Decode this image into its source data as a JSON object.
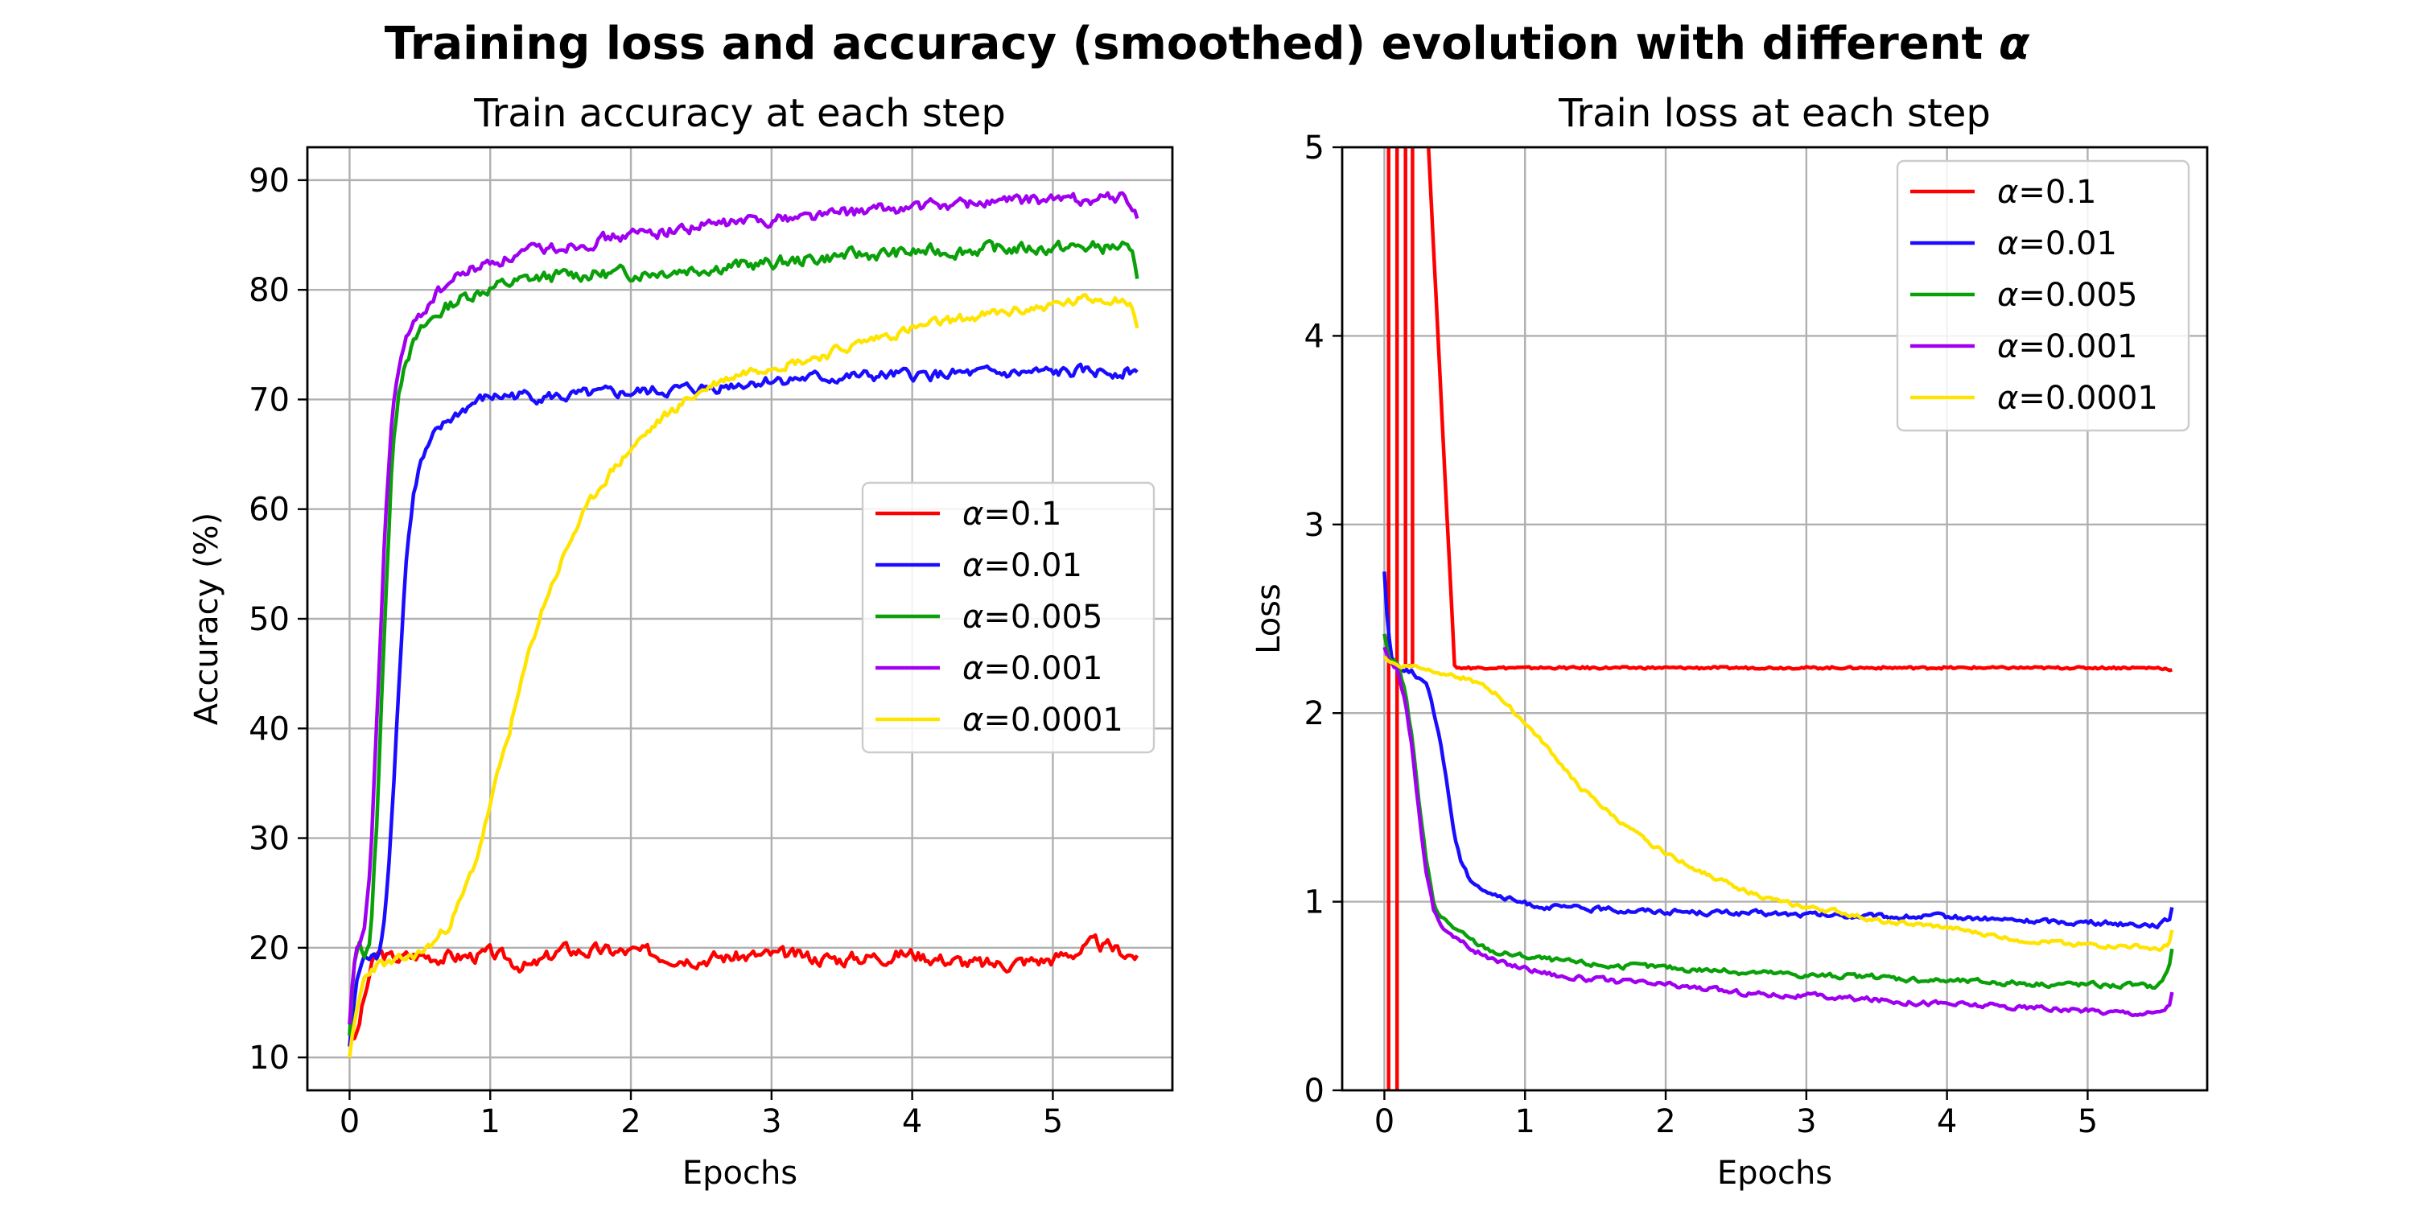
{
  "figure": {
    "title_prefix": "Training loss and accuracy (smoothed) evolution with different ",
    "title_symbol": "α"
  },
  "chart_data": [
    {
      "type": "line",
      "title": "Train accuracy at each step",
      "xlabel": "Epochs",
      "ylabel": "Accuracy (%)",
      "xlim": [
        -0.3,
        5.85
      ],
      "ylim": [
        7,
        93
      ],
      "xticks": [
        0,
        1,
        2,
        3,
        4,
        5
      ],
      "yticks": [
        10,
        20,
        30,
        40,
        50,
        60,
        70,
        80,
        90
      ],
      "grid": true,
      "legend_position": "center-right",
      "series": [
        {
          "name": "α=0.1",
          "color": "#ff0000",
          "noise": 0.55,
          "x": [
            0,
            0.05,
            0.1,
            0.15,
            0.2,
            0.3,
            0.5,
            0.8,
            1.0,
            1.3,
            1.5,
            2.0,
            2.5,
            3.0,
            3.5,
            4.0,
            4.5,
            5.0,
            5.3,
            5.6
          ],
          "y": [
            11,
            12,
            15,
            18,
            19.5,
            19,
            19.3,
            19.2,
            19.4,
            18.2,
            19.8,
            19.6,
            19.1,
            19.3,
            19.0,
            19.5,
            18.4,
            19.0,
            20.3,
            19.3
          ]
        },
        {
          "name": "α=0.01",
          "color": "#1a0dff",
          "noise": 0.45,
          "x": [
            0,
            0.05,
            0.1,
            0.15,
            0.2,
            0.25,
            0.3,
            0.35,
            0.4,
            0.45,
            0.5,
            0.6,
            0.7,
            0.8,
            0.9,
            1.0,
            1.2,
            1.5,
            2.0,
            2.5,
            3.0,
            3.5,
            4.0,
            4.5,
            5.0,
            5.5,
            5.6
          ],
          "y": [
            11,
            17,
            19,
            19,
            19,
            23,
            32,
            44,
            55,
            61,
            64,
            66.5,
            68,
            69,
            69.8,
            70.2,
            70.4,
            70.2,
            70.6,
            71.0,
            71.8,
            72.0,
            72.2,
            72.3,
            72.4,
            72.6,
            72.5
          ]
        },
        {
          "name": "α=0.005",
          "color": "#0aa00a",
          "noise": 0.5,
          "x": [
            0,
            0.03,
            0.06,
            0.1,
            0.15,
            0.2,
            0.25,
            0.3,
            0.35,
            0.4,
            0.45,
            0.5,
            0.6,
            0.7,
            0.8,
            1.0,
            1.3,
            1.6,
            2.0,
            2.5,
            3.0,
            3.5,
            4.0,
            4.5,
            5.0,
            5.5,
            5.58,
            5.6
          ],
          "y": [
            12,
            18,
            20.5,
            19.5,
            21,
            33,
            50,
            64,
            71,
            74,
            75,
            76,
            77.5,
            78.5,
            79.3,
            80.2,
            81,
            81.4,
            81.5,
            82,
            82.4,
            83.1,
            83.4,
            83.7,
            83.8,
            83.9,
            82.5,
            81
          ]
        },
        {
          "name": "α=0.001",
          "color": "#a000f0",
          "noise": 0.45,
          "x": [
            0,
            0.03,
            0.06,
            0.1,
            0.15,
            0.2,
            0.25,
            0.3,
            0.35,
            0.4,
            0.5,
            0.6,
            0.7,
            0.8,
            1.0,
            1.3,
            1.6,
            2.0,
            2.5,
            3.0,
            3.5,
            4.0,
            4.5,
            5.0,
            5.5,
            5.58,
            5.6
          ],
          "y": [
            13,
            18,
            20,
            21,
            28,
            42,
            58,
            68,
            73,
            75.5,
            77.5,
            79.5,
            80.5,
            81.5,
            82.5,
            83.5,
            84.2,
            85,
            85.8,
            86.5,
            87.0,
            87.5,
            88.0,
            88.2,
            88.4,
            87.5,
            86.5
          ]
        },
        {
          "name": "α=0.0001",
          "color": "#ffe400",
          "noise": 0.4,
          "x": [
            0,
            0.05,
            0.1,
            0.15,
            0.2,
            0.3,
            0.4,
            0.5,
            0.6,
            0.7,
            0.8,
            0.9,
            1.0,
            1.1,
            1.2,
            1.3,
            1.4,
            1.5,
            1.6,
            1.8,
            2.0,
            2.2,
            2.4,
            2.6,
            2.8,
            3.0,
            3.2,
            3.4,
            3.6,
            3.8,
            4.0,
            4.2,
            4.5,
            4.8,
            5.0,
            5.3,
            5.5,
            5.58,
            5.6
          ],
          "y": [
            10,
            14,
            17,
            18,
            18.5,
            18.5,
            19,
            19.5,
            20.5,
            22,
            24.5,
            28,
            33,
            38,
            43,
            48,
            52,
            55,
            58,
            62.5,
            65.5,
            68,
            70,
            71.5,
            72.5,
            73.2,
            73.5,
            74.2,
            75,
            75.8,
            76.4,
            77,
            77.6,
            78.2,
            78.6,
            79.2,
            79.3,
            78,
            76.5
          ]
        }
      ]
    },
    {
      "type": "line",
      "title": "Train loss at each step",
      "xlabel": "Epochs",
      "ylabel": "Loss",
      "xlim": [
        -0.3,
        5.85
      ],
      "ylim": [
        0,
        5
      ],
      "xticks": [
        0,
        1,
        2,
        3,
        4,
        5
      ],
      "yticks": [
        0,
        1,
        2,
        3,
        4,
        5
      ],
      "grid": true,
      "legend_position": "top-right",
      "series": [
        {
          "name": "α=0.1",
          "color": "#ff0000",
          "noise": 0.006,
          "x": [
            0,
            0.03,
            0.03,
            0.09,
            0.09,
            0.15,
            0.15,
            0.2,
            0.2,
            0.3,
            0.5,
            1.0,
            1.5,
            2.0,
            2.5,
            3.0,
            3.5,
            4.0,
            4.5,
            5.0,
            5.5,
            5.6
          ],
          "y": [
            5.2,
            5.2,
            -0.2,
            -0.2,
            5.2,
            5.2,
            2.25,
            2.25,
            5.2,
            5.2,
            2.24,
            2.24,
            2.24,
            2.24,
            2.24,
            2.24,
            2.24,
            2.24,
            2.24,
            2.24,
            2.24,
            2.23
          ]
        },
        {
          "name": "α=0.01",
          "color": "#1a0dff",
          "noise": 0.012,
          "x": [
            0,
            0.02,
            0.05,
            0.1,
            0.2,
            0.3,
            0.4,
            0.45,
            0.5,
            0.55,
            0.6,
            0.7,
            0.8,
            0.9,
            1.0,
            1.2,
            1.5,
            2.0,
            2.5,
            3.0,
            3.5,
            4.0,
            4.5,
            5.0,
            5.5,
            5.58,
            5.6
          ],
          "y": [
            2.75,
            2.5,
            2.3,
            2.25,
            2.22,
            2.15,
            1.85,
            1.6,
            1.35,
            1.2,
            1.13,
            1.07,
            1.03,
            1.01,
            0.99,
            0.97,
            0.96,
            0.95,
            0.94,
            0.93,
            0.92,
            0.92,
            0.9,
            0.89,
            0.88,
            0.9,
            0.97
          ]
        },
        {
          "name": "α=0.005",
          "color": "#0aa00a",
          "noise": 0.012,
          "x": [
            0,
            0.03,
            0.06,
            0.1,
            0.15,
            0.2,
            0.25,
            0.3,
            0.35,
            0.4,
            0.5,
            0.6,
            0.7,
            0.8,
            1.0,
            1.3,
            1.6,
            2.0,
            2.5,
            3.0,
            3.5,
            4.0,
            4.5,
            5.0,
            5.5,
            5.58,
            5.6
          ],
          "y": [
            2.42,
            2.3,
            2.28,
            2.26,
            2.1,
            1.85,
            1.5,
            1.2,
            1.0,
            0.92,
            0.86,
            0.8,
            0.76,
            0.73,
            0.71,
            0.68,
            0.66,
            0.65,
            0.63,
            0.61,
            0.6,
            0.58,
            0.57,
            0.56,
            0.55,
            0.65,
            0.75
          ]
        },
        {
          "name": "α=0.001",
          "color": "#a000f0",
          "noise": 0.012,
          "x": [
            0,
            0.03,
            0.06,
            0.1,
            0.15,
            0.2,
            0.25,
            0.3,
            0.35,
            0.4,
            0.5,
            0.6,
            0.7,
            0.8,
            1.0,
            1.3,
            1.6,
            2.0,
            2.5,
            3.0,
            3.5,
            4.0,
            4.5,
            5.0,
            5.5,
            5.58,
            5.6
          ],
          "y": [
            2.35,
            2.28,
            2.25,
            2.22,
            2.05,
            1.8,
            1.45,
            1.15,
            0.96,
            0.88,
            0.81,
            0.76,
            0.72,
            0.68,
            0.65,
            0.6,
            0.58,
            0.56,
            0.52,
            0.5,
            0.48,
            0.46,
            0.44,
            0.42,
            0.41,
            0.45,
            0.52
          ]
        },
        {
          "name": "α=0.0001",
          "color": "#ffe400",
          "noise": 0.01,
          "x": [
            0,
            0.05,
            0.1,
            0.2,
            0.4,
            0.6,
            0.8,
            1.0,
            1.2,
            1.4,
            1.6,
            1.8,
            2.0,
            2.2,
            2.4,
            2.6,
            2.8,
            3.0,
            3.2,
            3.5,
            4.0,
            4.5,
            5.0,
            5.4,
            5.5,
            5.58,
            5.6
          ],
          "y": [
            2.3,
            2.27,
            2.25,
            2.25,
            2.22,
            2.18,
            2.1,
            1.95,
            1.78,
            1.6,
            1.47,
            1.35,
            1.26,
            1.18,
            1.11,
            1.05,
            1.0,
            0.97,
            0.95,
            0.9,
            0.86,
            0.8,
            0.77,
            0.76,
            0.74,
            0.78,
            0.85
          ]
        }
      ]
    }
  ]
}
